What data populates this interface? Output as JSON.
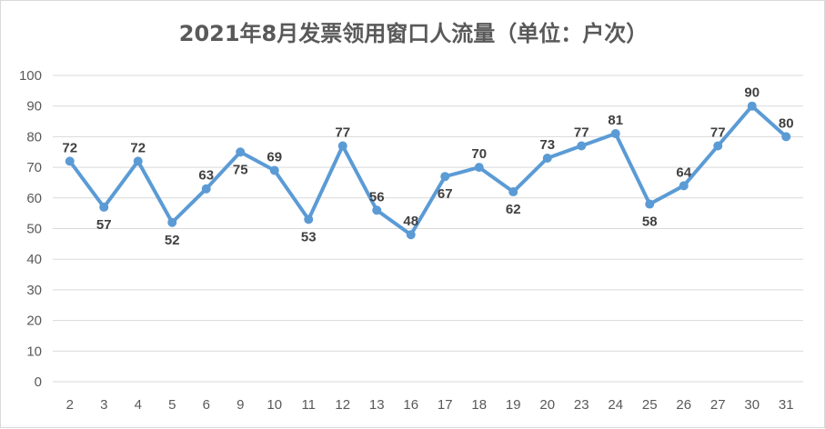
{
  "chart_data": {
    "type": "line",
    "title": "2021年8月发票领用窗口人流量（单位：户次）",
    "categories": [
      "2",
      "3",
      "4",
      "5",
      "6",
      "9",
      "10",
      "11",
      "12",
      "13",
      "16",
      "17",
      "18",
      "19",
      "20",
      "23",
      "24",
      "25",
      "26",
      "27",
      "30",
      "31"
    ],
    "series": [
      {
        "values": [
          72,
          57,
          72,
          52,
          63,
          75,
          69,
          53,
          77,
          56,
          48,
          67,
          70,
          62,
          73,
          77,
          81,
          58,
          64,
          77,
          90,
          80
        ]
      }
    ],
    "ylim": [
      0,
      100
    ],
    "yticks": [
      "0",
      "10",
      "20",
      "30",
      "40",
      "50",
      "60",
      "70",
      "80",
      "90",
      "100"
    ],
    "grid": true,
    "line_color": "#5b9bd5",
    "grid_color": "#d9d9d9",
    "text_color": "#595959",
    "label_positions": [
      "above",
      "below",
      "above",
      "below",
      "above",
      "below",
      "above",
      "below",
      "above",
      "above",
      "above",
      "below",
      "above",
      "below",
      "above",
      "above",
      "above",
      "below",
      "above",
      "above",
      "above",
      "above"
    ]
  }
}
